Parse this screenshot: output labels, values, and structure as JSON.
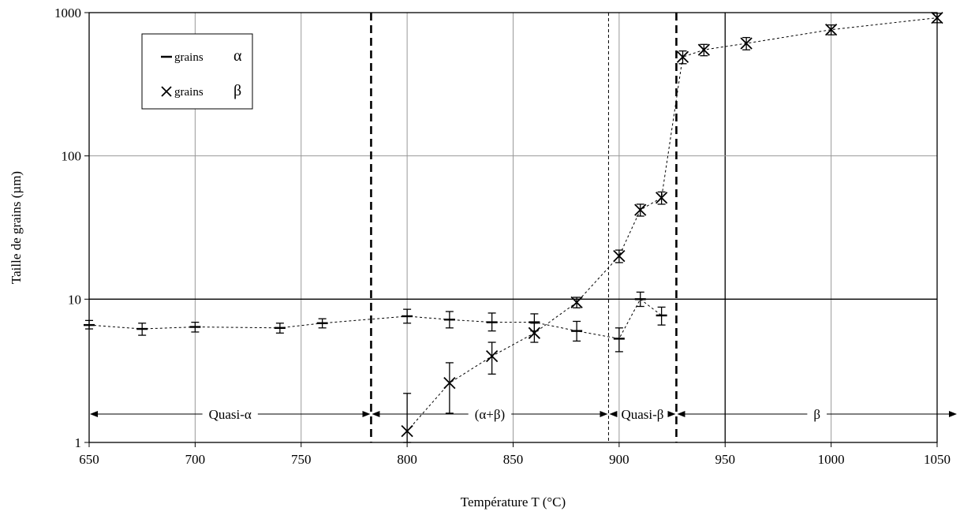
{
  "chart_data": {
    "type": "scatter",
    "xlabel": "Température T (°C)",
    "ylabel": "Taille de grains (µm)",
    "xlim": [
      650,
      1050
    ],
    "ylim": [
      1,
      1000
    ],
    "yscale": "log",
    "x_ticks": [
      650,
      700,
      750,
      800,
      850,
      900,
      950,
      1000,
      1050
    ],
    "y_ticks": [
      1,
      10,
      100,
      1000
    ],
    "x_tick_labels": [
      "650",
      "700",
      "750",
      "800",
      "850",
      "900",
      "950",
      "1000",
      "1050"
    ],
    "y_tick_labels": [
      "1",
      "10",
      "100",
      "1000"
    ],
    "grid": true,
    "legend_position": "top-left",
    "series": [
      {
        "key": "alpha",
        "marker": "dash",
        "line_style": "dotted",
        "legend_word": "grains",
        "legend_symbol": "α",
        "points": [
          {
            "x": 650,
            "y": 6.6,
            "ylo": 6.2,
            "yhi": 7.1
          },
          {
            "x": 675,
            "y": 6.2,
            "ylo": 5.6,
            "yhi": 6.8
          },
          {
            "x": 700,
            "y": 6.4,
            "ylo": 5.9,
            "yhi": 6.9
          },
          {
            "x": 740,
            "y": 6.3,
            "ylo": 5.8,
            "yhi": 6.8
          },
          {
            "x": 760,
            "y": 6.8,
            "ylo": 6.3,
            "yhi": 7.3
          },
          {
            "x": 800,
            "y": 7.6,
            "ylo": 6.8,
            "yhi": 8.5
          },
          {
            "x": 820,
            "y": 7.2,
            "ylo": 6.3,
            "yhi": 8.2
          },
          {
            "x": 840,
            "y": 6.9,
            "ylo": 6.0,
            "yhi": 8.0
          },
          {
            "x": 860,
            "y": 6.9,
            "ylo": 6.0,
            "yhi": 7.9
          },
          {
            "x": 880,
            "y": 6.0,
            "ylo": 5.1,
            "yhi": 7.0
          },
          {
            "x": 900,
            "y": 5.3,
            "ylo": 4.3,
            "yhi": 6.3
          },
          {
            "x": 910,
            "y": 10.0,
            "ylo": 8.9,
            "yhi": 11.2
          },
          {
            "x": 920,
            "y": 7.7,
            "ylo": 6.6,
            "yhi": 8.8
          }
        ]
      },
      {
        "key": "beta",
        "marker": "x",
        "line_style": "dotted",
        "legend_word": "grains",
        "legend_symbol": "β",
        "points": [
          {
            "x": 800,
            "y": 1.2,
            "ylo": 1.0,
            "yhi": 2.2
          },
          {
            "x": 820,
            "y": 2.6,
            "ylo": 1.6,
            "yhi": 3.6
          },
          {
            "x": 840,
            "y": 4.0,
            "ylo": 3.0,
            "yhi": 5.0
          },
          {
            "x": 860,
            "y": 5.8,
            "ylo": 5.0,
            "yhi": 6.8
          },
          {
            "x": 880,
            "y": 9.5,
            "ylo": 8.7,
            "yhi": 10.3
          },
          {
            "x": 900,
            "y": 20,
            "ylo": 18,
            "yhi": 22
          },
          {
            "x": 910,
            "y": 42,
            "ylo": 38,
            "yhi": 46
          },
          {
            "x": 920,
            "y": 51,
            "ylo": 46,
            "yhi": 56
          },
          {
            "x": 930,
            "y": 490,
            "ylo": 440,
            "yhi": 540
          },
          {
            "x": 940,
            "y": 550,
            "ylo": 500,
            "yhi": 600
          },
          {
            "x": 960,
            "y": 610,
            "ylo": 550,
            "yhi": 670
          },
          {
            "x": 1000,
            "y": 760,
            "ylo": 700,
            "yhi": 820
          },
          {
            "x": 1050,
            "y": 920,
            "ylo": 850,
            "yhi": 990
          }
        ]
      }
    ],
    "phase_boundaries": [
      {
        "x": 783,
        "style": "dashed-bold"
      },
      {
        "x": 895,
        "style": "dashed-thin"
      },
      {
        "x": 927,
        "style": "dashed-bold"
      }
    ],
    "regions": [
      {
        "label": "Quasi-α",
        "from": 650,
        "to": 783,
        "left_arrow": true,
        "right_arrow": true
      },
      {
        "label": "(α+β)",
        "from": 783,
        "to": 895,
        "left_arrow": true,
        "right_arrow": true
      },
      {
        "label": "Quasi-β",
        "from": 895,
        "to": 927,
        "left_arrow": true,
        "right_arrow": true
      },
      {
        "label": "β",
        "from": 927,
        "to": 1050,
        "left_arrow": true,
        "right_arrow": true
      }
    ]
  },
  "colors": {
    "axis": "#000000",
    "grid_light": "#999999",
    "grid_dark": "#000000",
    "series": "#000000",
    "background": "#ffffff"
  }
}
